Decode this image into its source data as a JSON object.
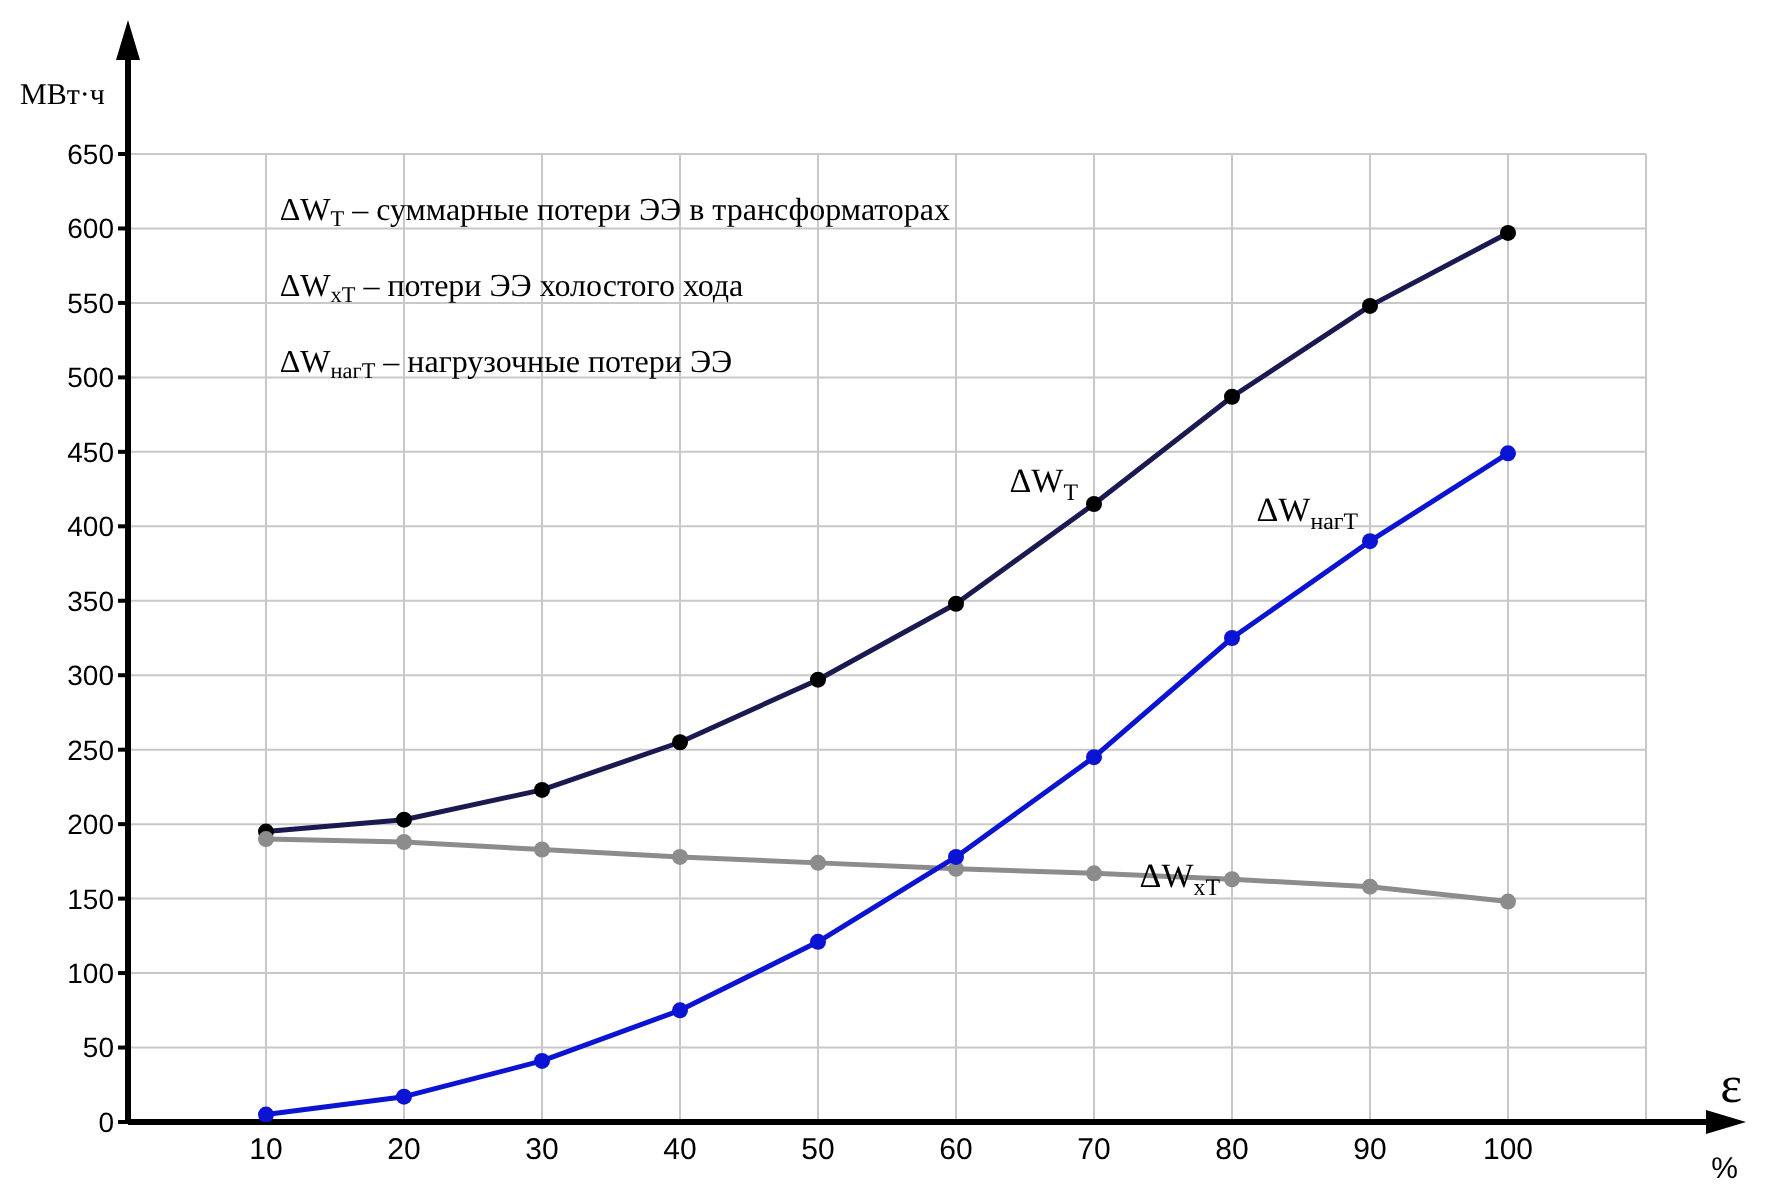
{
  "chart_data": {
    "type": "line",
    "xlabel": "ε %",
    "ylabel": "МВт·ч",
    "x": [
      10,
      20,
      30,
      40,
      50,
      60,
      70,
      80,
      90,
      100
    ],
    "series": [
      {
        "name": "ΔW$_{Т}$",
        "color": "#1a1a50",
        "values": [
          195,
          203,
          223,
          255,
          297,
          348,
          415,
          487,
          548,
          597
        ]
      },
      {
        "name": "ΔW$_{хТ}$",
        "color": "#8c8c8c",
        "values": [
          190,
          188,
          183,
          178,
          174,
          170,
          167,
          163,
          158,
          148
        ]
      },
      {
        "name": "ΔW$_{нагТ}$",
        "color": "#0a14d2",
        "values": [
          5,
          17,
          41,
          75,
          121,
          178,
          245,
          325,
          390,
          449
        ]
      }
    ],
    "xlim": [
      0,
      110
    ],
    "xticks": [
      10,
      20,
      30,
      40,
      50,
      60,
      70,
      80,
      90,
      100
    ],
    "ylim": [
      0,
      650
    ],
    "yticks": [
      0,
      50,
      100,
      150,
      200,
      250,
      300,
      350,
      400,
      450,
      500,
      550,
      600,
      650
    ],
    "grid": true,
    "legend": false,
    "marker": "circle",
    "line_style": "solid",
    "annotations": [
      "ΔW$_{Т}$ – суммарные потери ЭЭ в трансформаторах",
      "ΔW$_{хТ}$ – потери ЭЭ холостого хода",
      "ΔW$_{нагТ}$ – нагрузочные потери ЭЭ"
    ]
  }
}
